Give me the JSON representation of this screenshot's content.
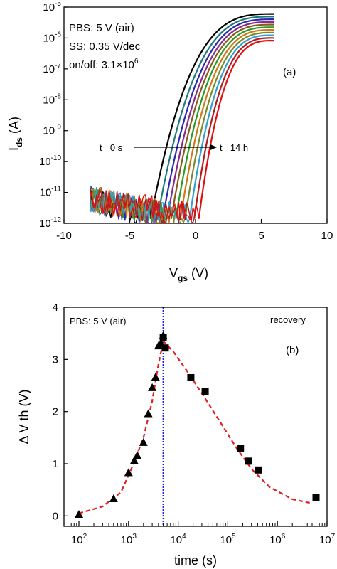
{
  "chart_data": [
    {
      "type": "line",
      "panel_label": "(a)",
      "xlabel": "V",
      "xlabel_sub": "gs",
      "xlabel_unit": "(V)",
      "ylabel": "I",
      "ylabel_sub": "ds",
      "ylabel_unit": "(A)",
      "xlim": [
        -10,
        10
      ],
      "ylim": [
        1e-12,
        1e-05
      ],
      "y_scale": "log",
      "x_ticks": [
        -10,
        -5,
        0,
        5,
        10
      ],
      "y_tick_exponents": [
        -12,
        -11,
        -10,
        -9,
        -8,
        -7,
        -6,
        -5
      ],
      "annotations": {
        "line1": "PBS: 5 V (air)",
        "line2": "SS: 0.35 V/dec",
        "line3_text": "on/off: 3.1×10",
        "line3_exp": "6"
      },
      "arrow_start_label": "t= 0 s",
      "arrow_end_label": "t= 14 h",
      "series_colors": [
        "#000000",
        "#1f7a7a",
        "#2a2ab0",
        "#8a2a8a",
        "#8a5a1a",
        "#2a9a2a",
        "#d07818",
        "#7a8a2a",
        "#30a0d0",
        "#b02020",
        "#e01010"
      ],
      "turn_on_voltages_V": [
        -3.4,
        -2.9,
        -2.5,
        -2.15,
        -1.85,
        -1.5,
        -1.15,
        -0.8,
        -0.45,
        -0.1,
        0.25
      ],
      "sweep_range_V": [
        -8,
        6
      ],
      "on_current_at_6V_A": 6e-06,
      "off_current_floor_A": 1e-12
    },
    {
      "type": "scatter",
      "panel_label": "(b)",
      "xlabel": "time (s)",
      "ylabel": "Δ V th (V)",
      "x_scale": "log",
      "xlim": [
        50,
        10000000.0
      ],
      "ylim": [
        -0.2,
        4
      ],
      "x_tick_exponents": [
        2,
        3,
        4,
        5,
        6,
        7
      ],
      "y_ticks": [
        0,
        1,
        2,
        3,
        4
      ],
      "annotations": {
        "stress": "PBS: 5 V (air)",
        "recovery": "recovery"
      },
      "divider_time_s": 5000,
      "series": [
        {
          "name": "stress",
          "marker": "triangle",
          "points": [
            [
              100,
              0.02
            ],
            [
              500,
              0.32
            ],
            [
              1000,
              0.82
            ],
            [
              1300,
              1.05
            ],
            [
              1500,
              1.15
            ],
            [
              2000,
              1.4
            ],
            [
              2500,
              1.95
            ],
            [
              3000,
              2.45
            ],
            [
              3500,
              2.65
            ],
            [
              4000,
              3.25
            ],
            [
              4500,
              3.3
            ],
            [
              5000,
              3.45
            ]
          ]
        },
        {
          "name": "recovery",
          "marker": "square",
          "points": [
            [
              5000,
              3.42
            ],
            [
              5500,
              3.22
            ],
            [
              18000,
              2.65
            ],
            [
              35000,
              2.38
            ],
            [
              180000,
              1.3
            ],
            [
              260000,
              1.05
            ],
            [
              420000,
              0.88
            ],
            [
              6000000,
              0.35
            ]
          ]
        }
      ],
      "fit_stress": [
        [
          100,
          0.05
        ],
        [
          300,
          0.18
        ],
        [
          700,
          0.45
        ],
        [
          1200,
          0.95
        ],
        [
          2000,
          1.5
        ],
        [
          3000,
          2.2
        ],
        [
          4000,
          2.9
        ],
        [
          5000,
          3.35
        ]
      ],
      "fit_recovery": [
        [
          5000,
          3.35
        ],
        [
          8000,
          3.15
        ],
        [
          15000,
          2.78
        ],
        [
          30000,
          2.35
        ],
        [
          70000,
          1.8
        ],
        [
          150000,
          1.3
        ],
        [
          300000,
          0.9
        ],
        [
          700000,
          0.55
        ],
        [
          2000000,
          0.32
        ],
        [
          5000000,
          0.24
        ]
      ]
    }
  ]
}
